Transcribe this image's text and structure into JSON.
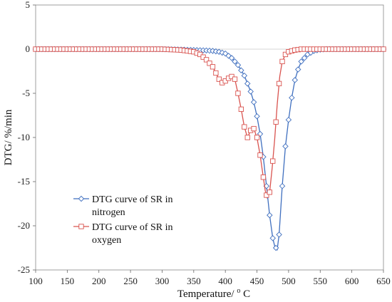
{
  "chart_data": {
    "type": "line",
    "title": "",
    "xlabel": "Temperature/ ",
    "xlabel_sup": "o",
    "xlabel_tail": " C",
    "ylabel": "DTG/ %/min",
    "xlim": [
      100,
      650
    ],
    "ylim": [
      -25,
      5
    ],
    "x_ticks": [
      "100",
      "150",
      "200",
      "250",
      "300",
      "350",
      "400",
      "450",
      "500",
      "550",
      "600",
      "650"
    ],
    "y_ticks": [
      "5",
      "0",
      "-5",
      "-10",
      "-15",
      "-20",
      "-25"
    ],
    "grid": false,
    "legend_position": "bottom-left",
    "series": [
      {
        "name": "DTG curve of SR in nitrogen",
        "legend_lines": [
          "DTG curve of SR in",
          "nitrogen"
        ],
        "color": "#3f6fbf",
        "marker": "diamond",
        "x": [
          100,
          150,
          200,
          250,
          300,
          330,
          350,
          370,
          380,
          390,
          400,
          410,
          420,
          430,
          440,
          445,
          450,
          455,
          460,
          465,
          470,
          475,
          478,
          482,
          485,
          490,
          495,
          500,
          505,
          510,
          515,
          520,
          530,
          540,
          550,
          560,
          600,
          650
        ],
        "y": [
          0,
          0,
          0,
          0,
          0,
          -0.05,
          -0.1,
          -0.15,
          -0.2,
          -0.3,
          -0.5,
          -1.0,
          -1.8,
          -3.0,
          -4.8,
          -6.0,
          -7.6,
          -9.6,
          -12.2,
          -15.5,
          -18.8,
          -21.4,
          -22.3,
          -22.7,
          -21.0,
          -15.5,
          -11.0,
          -8.0,
          -5.5,
          -3.5,
          -2.3,
          -1.4,
          -0.6,
          -0.2,
          -0.05,
          0,
          0,
          0
        ]
      },
      {
        "name": "DTG curve of SR in oxygen",
        "legend_lines": [
          "DTG curve of SR in",
          "oxygen"
        ],
        "color": "#d9534f",
        "marker": "square",
        "x": [
          100,
          150,
          200,
          250,
          300,
          330,
          350,
          360,
          370,
          380,
          390,
          395,
          400,
          405,
          410,
          415,
          420,
          425,
          430,
          435,
          440,
          445,
          450,
          455,
          460,
          463,
          466,
          470,
          474,
          478,
          482,
          486,
          490,
          495,
          500,
          510,
          520,
          550,
          600,
          650
        ],
        "y": [
          0,
          0,
          0,
          0,
          0,
          -0.1,
          -0.3,
          -0.6,
          -1.2,
          -2.0,
          -3.4,
          -3.8,
          -3.6,
          -3.3,
          -3.1,
          -3.4,
          -5.0,
          -6.8,
          -8.8,
          -10.0,
          -9.2,
          -9.0,
          -10.0,
          -12.0,
          -14.5,
          -16.0,
          -16.8,
          -16.2,
          -13.5,
          -10.2,
          -6.3,
          -3.1,
          -1.4,
          -0.6,
          -0.3,
          -0.1,
          0,
          0,
          0,
          0
        ]
      }
    ]
  }
}
